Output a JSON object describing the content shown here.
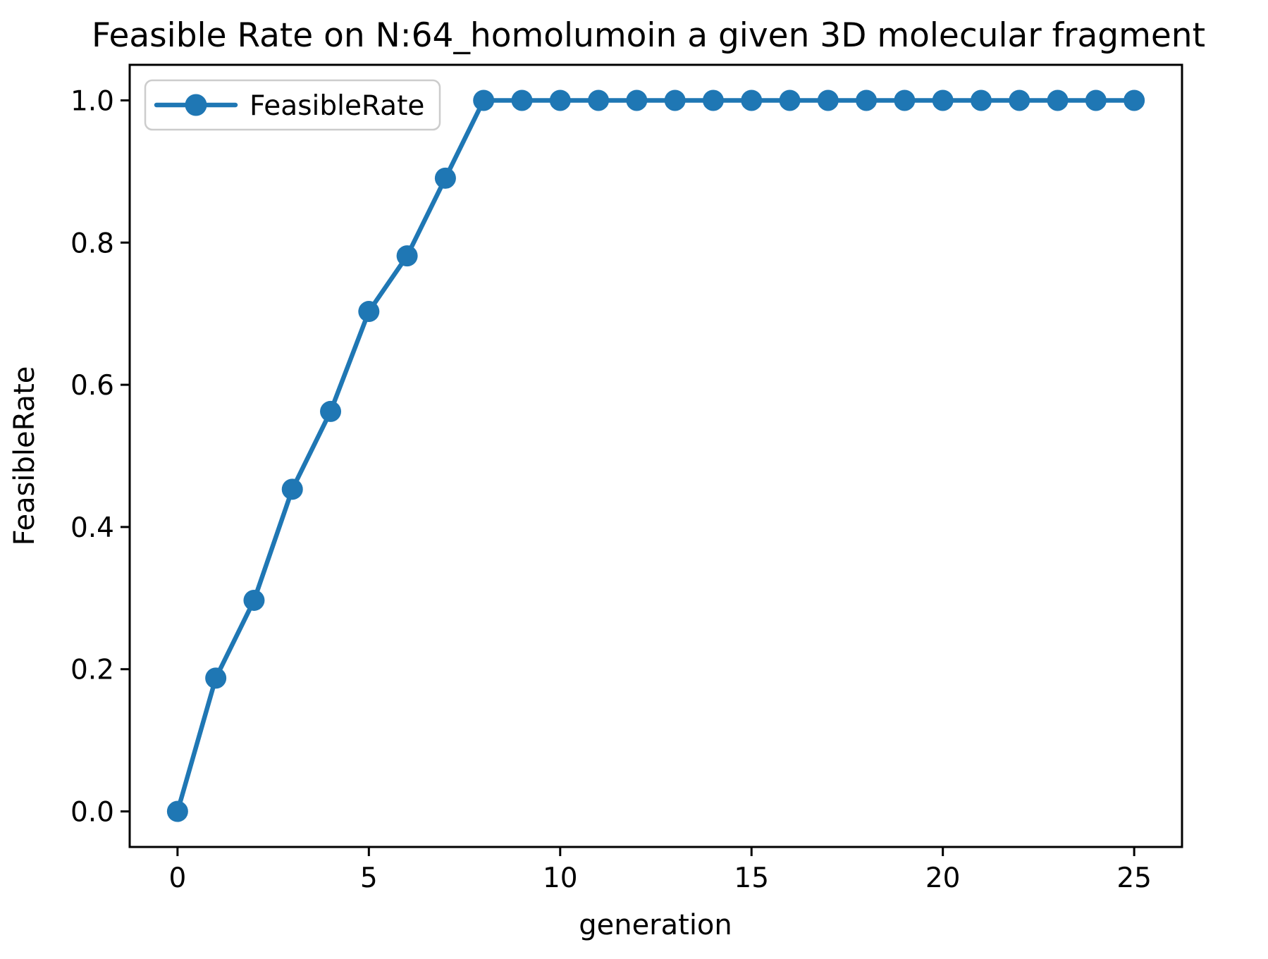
{
  "chart_data": {
    "type": "line",
    "title": "Feasible Rate on N:64_homolumoin a given 3D molecular fragment",
    "xlabel": "generation",
    "ylabel": "FeasibleRate",
    "grid": false,
    "legend_position": "upper left",
    "xlim": [
      -1.25,
      26.25
    ],
    "ylim": [
      -0.05,
      1.05
    ],
    "x_ticks": [
      0,
      5,
      10,
      15,
      20,
      25
    ],
    "x_tick_labels": [
      "0",
      "5",
      "10",
      "15",
      "20",
      "25"
    ],
    "y_ticks": [
      0.0,
      0.2,
      0.4,
      0.6,
      0.8,
      1.0
    ],
    "y_tick_labels": [
      "0.0",
      "0.2",
      "0.4",
      "0.6",
      "0.8",
      "1.0"
    ],
    "series": [
      {
        "name": "FeasibleRate",
        "color": "#1f77b4",
        "marker": "circle",
        "x": [
          0,
          1,
          2,
          3,
          4,
          5,
          6,
          7,
          8,
          9,
          10,
          11,
          12,
          13,
          14,
          15,
          16,
          17,
          18,
          19,
          20,
          21,
          22,
          23,
          24,
          25
        ],
        "y": [
          0.0,
          0.1875,
          0.2969,
          0.4531,
          0.5625,
          0.7031,
          0.7813,
          0.8906,
          1.0,
          1.0,
          1.0,
          1.0,
          1.0,
          1.0,
          1.0,
          1.0,
          1.0,
          1.0,
          1.0,
          1.0,
          1.0,
          1.0,
          1.0,
          1.0,
          1.0,
          1.0
        ]
      }
    ]
  }
}
